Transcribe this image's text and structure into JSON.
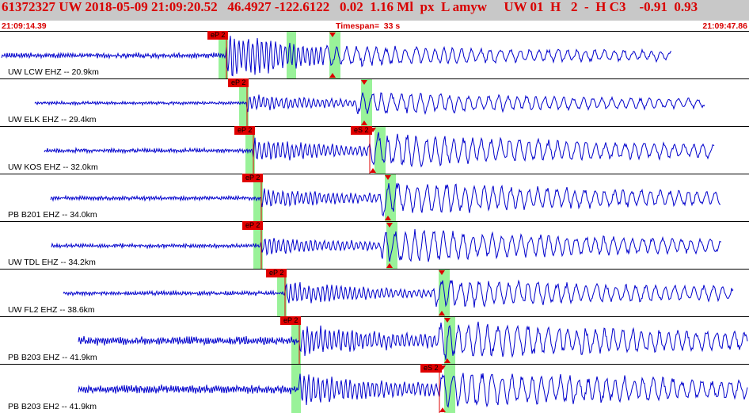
{
  "header": {
    "event_line": "61372327 UW 2018-05-09 21:09:20.52   46.4927 -122.6122   0.02  1.16 Ml  px  L amyw     UW 01  H   2  -  H C3    -0.91  0.93",
    "time_start": "21:09:14.39",
    "timespan": "Timespan=  33 s",
    "time_end": "21:09:47.86"
  },
  "colors": {
    "header_bg": "#c8c8c8",
    "header_text": "#d80000",
    "trace": "#0000cc",
    "pick_line": "#dd0000",
    "pick_tag_bg": "#e00000",
    "window_highlight": "#99f299"
  },
  "channels": [
    {
      "label": "UW LCW EHZ -- 20.9km",
      "pick_p": "eP 2",
      "pick_s": null,
      "trace": {
        "start": 2,
        "end": 848,
        "onset": 286,
        "s_onset": 410,
        "amp_noise": 2.5,
        "amp_p": 25,
        "amp_coda": 10,
        "seed": 1
      }
    },
    {
      "label": "UW ELK EHZ -- 29.4km",
      "pick_p": "eP 2",
      "pick_s": null,
      "trace": {
        "start": 44,
        "end": 890,
        "onset": 312,
        "s_onset": 450,
        "amp_noise": 1.5,
        "amp_p": 8,
        "amp_coda": 12,
        "seed": 2
      }
    },
    {
      "label": "UW KOS EHZ -- 32.0km",
      "pick_p": "eP 2",
      "pick_s": "eS 2",
      "trace": {
        "start": 56,
        "end": 902,
        "onset": 320,
        "s_onset": 467,
        "amp_noise": 2,
        "amp_p": 12,
        "amp_coda": 18,
        "seed": 3
      }
    },
    {
      "label": "PB B201 EHZ -- 34.0km",
      "pick_p": "eP 2",
      "pick_s": null,
      "trace": {
        "start": 64,
        "end": 910,
        "onset": 330,
        "s_onset": 480,
        "amp_noise": 2,
        "amp_p": 10,
        "amp_coda": 18,
        "seed": 4
      }
    },
    {
      "label": "UW TDL EHZ -- 34.2km",
      "pick_p": "eP 2",
      "pick_s": null,
      "trace": {
        "start": 65,
        "end": 911,
        "onset": 330,
        "s_onset": 482,
        "amp_noise": 2,
        "amp_p": 9,
        "amp_coda": 18,
        "seed": 5
      }
    },
    {
      "label": "UW FL2 EHZ -- 38.6km",
      "pick_p": "eP 2",
      "pick_s": null,
      "trace": {
        "start": 80,
        "end": 926,
        "onset": 360,
        "s_onset": 548,
        "amp_noise": 2,
        "amp_p": 12,
        "amp_coda": 15,
        "seed": 6
      }
    },
    {
      "label": "PB B203 EHZ -- 41.9km",
      "pick_p": "eP 2",
      "pick_s": null,
      "trace": {
        "start": 99,
        "end": 944,
        "onset": 378,
        "s_onset": 555,
        "amp_noise": 4,
        "amp_p": 14,
        "amp_coda": 18,
        "seed": 7
      }
    },
    {
      "label": "PB B203 EH2 -- 41.9km",
      "pick_p": null,
      "pick_s": "eS 2",
      "trace": {
        "start": 99,
        "end": 944,
        "onset": 378,
        "s_onset": 555,
        "amp_noise": 4,
        "amp_p": 14,
        "amp_coda": 18,
        "seed": 8
      }
    }
  ]
}
